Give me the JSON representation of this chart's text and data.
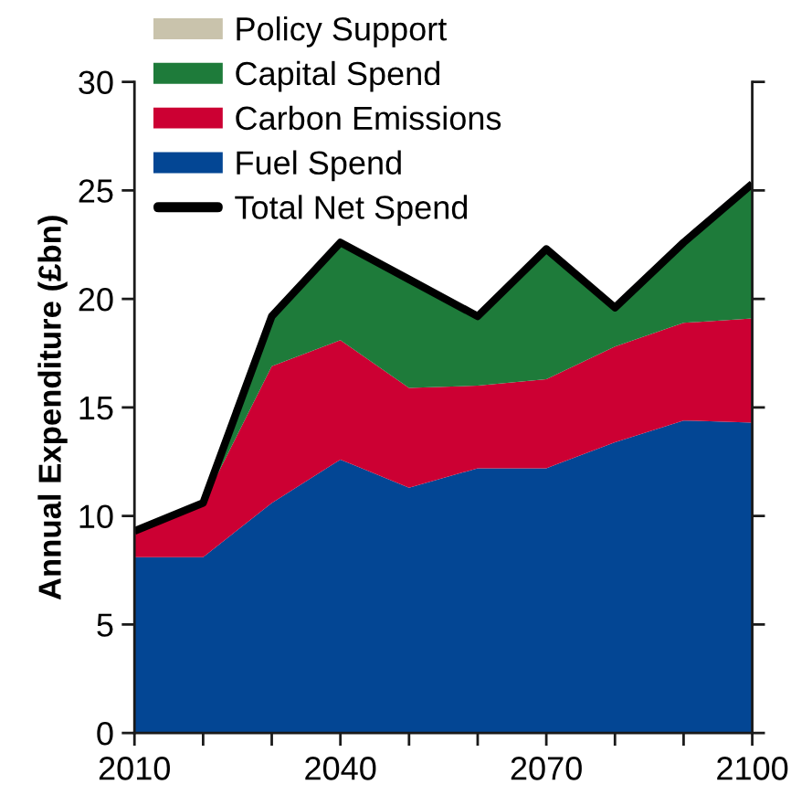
{
  "chart_data": {
    "type": "area",
    "stacked": true,
    "ylabel": "Annual Expenditure (£bn)",
    "x": [
      2010,
      2020,
      2030,
      2040,
      2050,
      2060,
      2070,
      2080,
      2090,
      2100
    ],
    "xlim": [
      2010,
      2100
    ],
    "xticks": [
      2010,
      {
        "value": 2020,
        "label": null
      },
      {
        "value": 2030,
        "label": null
      },
      2040,
      {
        "value": 2050,
        "label": null
      },
      {
        "value": 2060,
        "label": null
      },
      2070,
      {
        "value": 2080,
        "label": null
      },
      {
        "value": 2090,
        "label": null
      },
      2100
    ],
    "ylim": [
      0,
      30
    ],
    "yticks": [
      0,
      5,
      10,
      15,
      20,
      25,
      30
    ],
    "legend": "top left",
    "series": [
      {
        "name": "Fuel Spend",
        "color": "#034694",
        "values": [
          8.1,
          8.1,
          10.6,
          12.6,
          11.3,
          12.2,
          12.2,
          13.4,
          14.4,
          14.3
        ]
      },
      {
        "name": "Carbon Emissions",
        "color": "#cc0033",
        "values": [
          1.2,
          2.5,
          6.3,
          5.5,
          4.6,
          3.8,
          4.1,
          4.4,
          4.5,
          4.8
        ]
      },
      {
        "name": "Capital Spend",
        "color": "#1e7b3a",
        "values": [
          null,
          0,
          2.3,
          4.5,
          5.0,
          3.2,
          6.0,
          1.8,
          3.7,
          6.2
        ]
      },
      {
        "name": "Policy Support",
        "color": "#c9c3ac",
        "values": [
          null,
          null,
          null,
          null,
          null,
          null,
          null,
          null,
          null,
          null
        ]
      },
      {
        "name": "Total Net Spend",
        "type": "line",
        "color": "#000000",
        "values": [
          9.3,
          10.6,
          19.2,
          22.6,
          20.9,
          19.2,
          22.3,
          19.6,
          22.6,
          25.3
        ]
      }
    ]
  }
}
